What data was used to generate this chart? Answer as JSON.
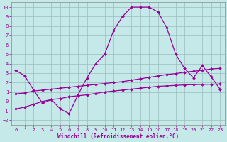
{
  "xlabel": "Windchill (Refroidissement éolien,°C)",
  "bg_color": "#c5e8e8",
  "line_color": "#990099",
  "grid_color": "#9bbcbc",
  "xlim_min": -0.5,
  "xlim_max": 23.5,
  "ylim_min": -2.5,
  "ylim_max": 10.5,
  "yticks": [
    -2,
    -1,
    0,
    1,
    2,
    3,
    4,
    5,
    6,
    7,
    8,
    9,
    10
  ],
  "xticks": [
    0,
    1,
    2,
    3,
    4,
    5,
    6,
    7,
    8,
    9,
    10,
    11,
    12,
    13,
    14,
    15,
    16,
    17,
    18,
    19,
    20,
    21,
    22,
    23
  ],
  "line1_x": [
    0,
    1,
    2,
    3,
    4,
    5,
    6,
    7,
    8,
    9,
    10,
    11,
    12,
    13,
    14,
    15,
    16,
    17,
    18,
    19,
    20,
    21,
    22,
    23
  ],
  "line1_y": [
    3.3,
    2.7,
    1.2,
    -0.2,
    0.2,
    -0.8,
    -1.3,
    0.7,
    2.5,
    4.0,
    5.0,
    7.5,
    9.0,
    10.0,
    10.0,
    10.0,
    9.5,
    7.8,
    5.0,
    3.5,
    2.5,
    3.8,
    2.6,
    1.3
  ],
  "line2_x": [
    0,
    1,
    2,
    3,
    4,
    5,
    6,
    7,
    8,
    9,
    10,
    11,
    12,
    13,
    14,
    15,
    16,
    17,
    18,
    19,
    20,
    21,
    22,
    23
  ],
  "line2_y": [
    0.8,
    0.9,
    1.1,
    1.2,
    1.3,
    1.4,
    1.5,
    1.6,
    1.7,
    1.8,
    1.9,
    2.0,
    2.1,
    2.25,
    2.4,
    2.55,
    2.7,
    2.85,
    2.95,
    3.1,
    3.2,
    3.3,
    3.45,
    3.5
  ],
  "line3_x": [
    0,
    1,
    2,
    3,
    4,
    5,
    6,
    7,
    8,
    9,
    10,
    11,
    12,
    13,
    14,
    15,
    16,
    17,
    18,
    19,
    20,
    21,
    22,
    23
  ],
  "line3_y": [
    -0.8,
    -0.6,
    -0.3,
    0.0,
    0.2,
    0.3,
    0.5,
    0.6,
    0.7,
    0.85,
    1.0,
    1.1,
    1.2,
    1.3,
    1.4,
    1.5,
    1.6,
    1.65,
    1.7,
    1.75,
    1.78,
    1.8,
    1.82,
    1.85
  ],
  "tick_fontsize": 5.0,
  "xlabel_fontsize": 5.5,
  "marker_size": 2.0,
  "linewidth": 0.9
}
